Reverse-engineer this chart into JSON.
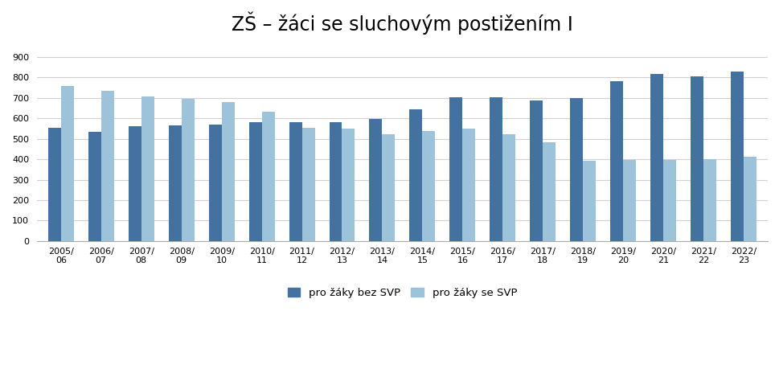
{
  "title": "ZŠ – žáci se sluchovým postižením I",
  "categories": [
    "2005/\n06",
    "2006/\n07",
    "2007/\n08",
    "2008/\n09",
    "2009/\n10",
    "2010/\n11",
    "2011/\n12",
    "2012/\n13",
    "2013/\n14",
    "2014/\n15",
    "2015/\n16",
    "2016/\n17",
    "2017/\n18",
    "2018/\n19",
    "2019/\n20",
    "2020/\n21",
    "2021/\n22",
    "2022/\n23"
  ],
  "dark_values": [
    555,
    535,
    560,
    565,
    570,
    580,
    580,
    580,
    598,
    643,
    702,
    702,
    688,
    697,
    780,
    815,
    805,
    830
  ],
  "light_values": [
    758,
    735,
    705,
    693,
    678,
    633,
    555,
    548,
    520,
    537,
    550,
    523,
    483,
    393,
    395,
    398,
    400,
    410
  ],
  "dark_color": "#4472a0",
  "light_color": "#9dc3db",
  "ylim": [
    0,
    950
  ],
  "yticks": [
    0,
    100,
    200,
    300,
    400,
    500,
    600,
    700,
    800,
    900
  ],
  "legend_dark": "pro žáky bez SVP",
  "legend_light": "pro žáky se SVP",
  "background_color": "#ffffff",
  "plot_area_color": "#ffffff",
  "grid_color": "#d0d0d0",
  "title_fontsize": 17,
  "tick_fontsize": 8,
  "legend_fontsize": 9.5,
  "bar_width": 0.32
}
